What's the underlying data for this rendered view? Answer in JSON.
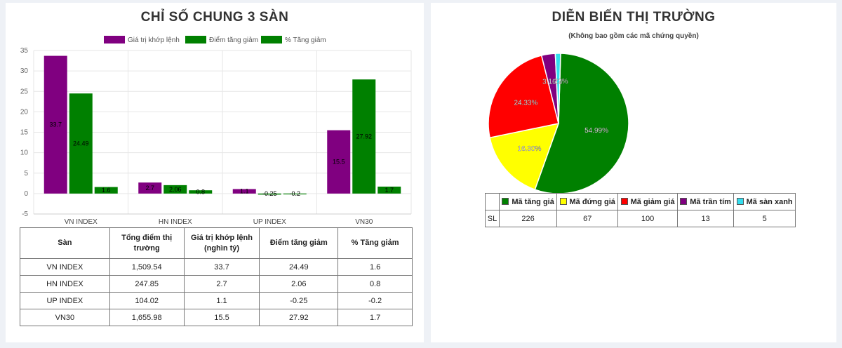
{
  "left": {
    "title": "CHỈ SỐ CHUNG 3 SÀN",
    "table": {
      "headers": [
        "Sàn",
        "Tổng điểm thị trường",
        "Giá trị khớp lệnh (nghìn tỷ)",
        "Điểm tăng giảm",
        "% Tăng giảm"
      ],
      "rows": [
        [
          "VN INDEX",
          "1,509.54",
          "33.7",
          "24.49",
          "1.6"
        ],
        [
          "HN INDEX",
          "247.85",
          "2.7",
          "2.06",
          "0.8"
        ],
        [
          "UP INDEX",
          "104.02",
          "1.1",
          "-0.25",
          "-0.2"
        ],
        [
          "VN30",
          "1,655.98",
          "15.5",
          "27.92",
          "1.7"
        ]
      ]
    }
  },
  "right": {
    "title": "DIỄN BIẾN THỊ TRƯỜNG",
    "subtitle": "(Không bao gồm các mã chứng quyền)",
    "row_label": "SL",
    "table_headers": [
      "Mã tăng giá",
      "Mã đứng giá",
      "Mã giảm giá",
      "Mã trần tím",
      "Mã sàn xanh"
    ],
    "counts": [
      "226",
      "67",
      "100",
      "13",
      "5"
    ]
  },
  "chart_data": [
    {
      "type": "bar",
      "categories": [
        "VN INDEX",
        "HN INDEX",
        "UP INDEX",
        "VN30"
      ],
      "series": [
        {
          "name": "Giá trị khớp lệnh",
          "color": "#800080",
          "values": [
            33.7,
            2.7,
            1.1,
            15.5
          ]
        },
        {
          "name": "Điểm tăng giảm",
          "color": "#008000",
          "values": [
            24.49,
            2.06,
            -0.25,
            27.92
          ]
        },
        {
          "name": "% Tăng giảm",
          "color": "#008000",
          "values": [
            1.6,
            0.8,
            -0.2,
            1.7
          ]
        }
      ],
      "ylim": [
        -5,
        35
      ],
      "yticks": [
        -5,
        0,
        5,
        10,
        15,
        20,
        25,
        30,
        35
      ],
      "legend": "top",
      "grid": true
    },
    {
      "type": "pie",
      "categories": [
        "Mã tăng giá",
        "Mã đứng giá",
        "Mã giảm giá",
        "Mã trần tím",
        "Mã sàn xanh"
      ],
      "values": [
        226,
        67,
        100,
        13,
        5
      ],
      "labels": [
        "54.99%",
        "16.30%",
        "24.33%",
        "3.16%",
        "1.22%"
      ],
      "colors": [
        "#008000",
        "#ffff00",
        "#ff0000",
        "#800080",
        "#33ddee"
      ]
    }
  ]
}
